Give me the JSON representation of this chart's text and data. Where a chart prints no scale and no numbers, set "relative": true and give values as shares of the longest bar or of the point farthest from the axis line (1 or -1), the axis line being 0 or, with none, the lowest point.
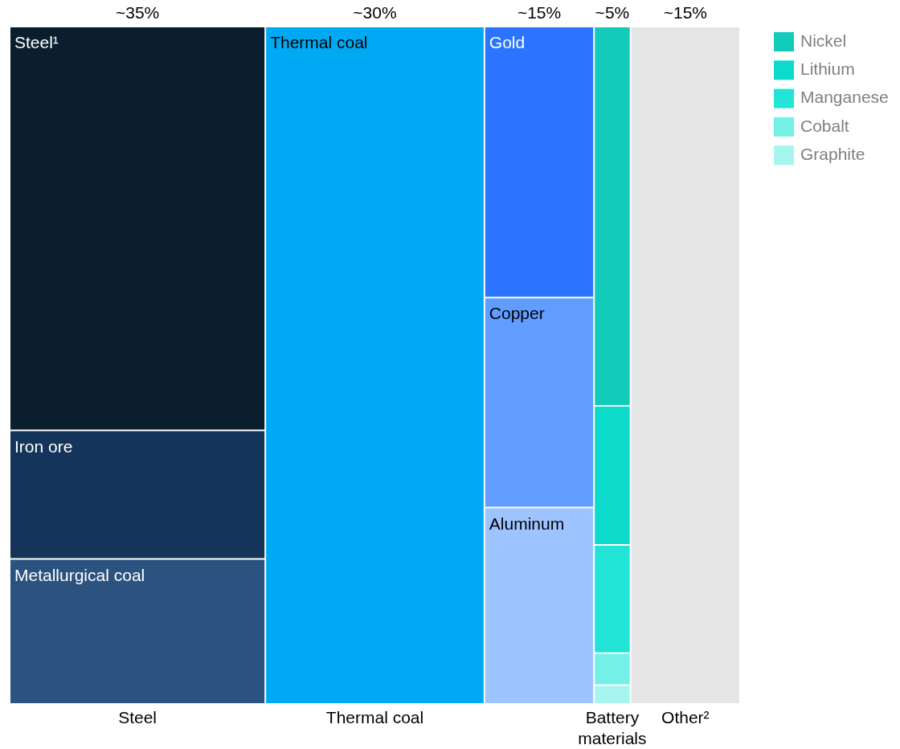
{
  "chart_data": {
    "type": "bar",
    "stacked": true,
    "relative": true,
    "legend": "top right",
    "categories": [
      "Steel",
      "Thermal coal",
      null,
      "Battery materials",
      "Other²"
    ],
    "annotations": [
      "~35%",
      "~30%",
      "~15%",
      "~5%",
      "~15%"
    ],
    "series": [
      {
        "name": "Metallurgical coal",
        "color": "#2c527f",
        "values": [
          0.214,
          null,
          null,
          null,
          null
        ]
      },
      {
        "name": "Iron ore",
        "color": "#143459",
        "values": [
          0.19,
          null,
          null,
          null,
          null
        ]
      },
      {
        "name": "Steel¹",
        "color": "#0a1e2e",
        "values": [
          0.596,
          null,
          null,
          null,
          null
        ]
      },
      {
        "name": "Thermal coal",
        "color": "#00a9f4",
        "values": [
          null,
          1,
          null,
          null,
          null
        ]
      },
      {
        "name": "Aluminum",
        "color": "#9ec4ff",
        "values": [
          null,
          null,
          0.29,
          null,
          null
        ]
      },
      {
        "name": "Copper",
        "color": "#609dff",
        "values": [
          null,
          null,
          0.31,
          null,
          null
        ]
      },
      {
        "name": "Gold",
        "color": "#2a74ff",
        "values": [
          null,
          null,
          0.4,
          null,
          null
        ]
      },
      {
        "name": "Graphite",
        "color": "#a6f5ef",
        "values": [
          null,
          null,
          null,
          0.028,
          null
        ]
      },
      {
        "name": "Cobalt",
        "color": "#74f0e6",
        "values": [
          null,
          null,
          null,
          0.047,
          null
        ]
      },
      {
        "name": "Manganese",
        "color": "#22e5d8",
        "values": [
          null,
          null,
          null,
          0.16,
          null
        ]
      },
      {
        "name": "Lithium",
        "color": "#0cdaca",
        "values": [
          null,
          null,
          null,
          0.205,
          null
        ]
      },
      {
        "name": "Nickel",
        "color": "#12cbb9",
        "values": [
          null,
          null,
          null,
          0.56,
          null
        ]
      },
      {
        "color": "#e6e6e6",
        "values": [
          null,
          null,
          null,
          null,
          1
        ]
      }
    ]
  }
}
